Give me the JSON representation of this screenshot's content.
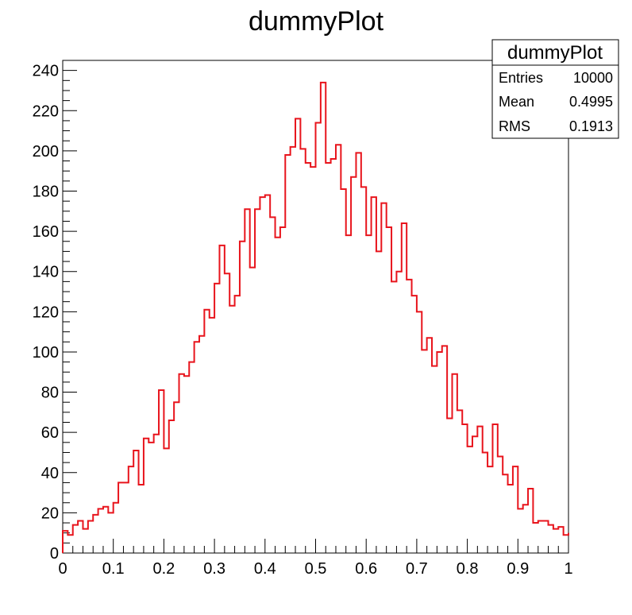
{
  "chart_data": {
    "type": "histogram",
    "title": "dummyPlot",
    "xlabel": "",
    "ylabel": "",
    "xlim": [
      0,
      1
    ],
    "ylim": [
      0,
      245
    ],
    "grid": false,
    "line_color": "#e8141c",
    "bin_edges_start": 0,
    "bin_width": 0.01,
    "values": [
      11,
      9,
      14,
      16,
      12,
      16,
      19,
      22,
      23,
      20,
      25,
      35,
      35,
      43,
      51,
      34,
      57,
      55,
      59,
      81,
      52,
      66,
      75,
      89,
      88,
      95,
      105,
      108,
      121,
      117,
      134,
      153,
      139,
      123,
      128,
      155,
      171,
      142,
      171,
      177,
      178,
      167,
      157,
      162,
      198,
      202,
      216,
      201,
      194,
      192,
      214,
      234,
      194,
      196,
      203,
      181,
      158,
      187,
      199,
      182,
      158,
      177,
      150,
      174,
      162,
      135,
      140,
      164,
      136,
      128,
      120,
      101,
      107,
      93,
      100,
      103,
      67,
      89,
      71,
      64,
      53,
      58,
      63,
      50,
      43,
      64,
      48,
      39,
      34,
      43,
      22,
      24,
      32,
      15,
      16,
      16,
      14,
      12,
      13,
      9,
      10
    ],
    "x_ticks": [
      0,
      0.1,
      0.2,
      0.3,
      0.4,
      0.5,
      0.6,
      0.7,
      0.8,
      0.9,
      1
    ],
    "x_tick_labels": [
      "0",
      "0.1",
      "0.2",
      "0.3",
      "0.4",
      "0.5",
      "0.6",
      "0.7",
      "0.8",
      "0.9",
      "1"
    ],
    "y_ticks": [
      0,
      20,
      40,
      60,
      80,
      100,
      120,
      140,
      160,
      180,
      200,
      220,
      240
    ],
    "y_tick_labels": [
      "0",
      "20",
      "40",
      "60",
      "80",
      "100",
      "120",
      "140",
      "160",
      "180",
      "200",
      "220",
      "240"
    ]
  },
  "stats_box": {
    "title": "dummyPlot",
    "rows": [
      {
        "label": "Entries",
        "value": "10000"
      },
      {
        "label": "Mean",
        "value": "0.4995"
      },
      {
        "label": "RMS",
        "value": "0.1913"
      }
    ]
  }
}
